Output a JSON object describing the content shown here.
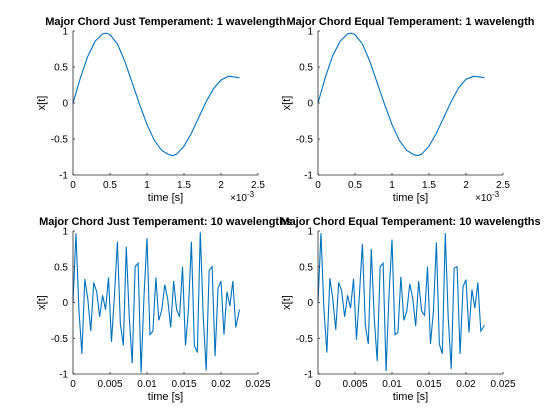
{
  "chart_data": [
    {
      "type": "line",
      "title": "Major Chord Just Temperament: 1 wavelength",
      "xlabel": "time [s]",
      "ylabel": "x[t]",
      "xlim": [
        0,
        0.0025
      ],
      "ylim": [
        -1,
        1
      ],
      "xtick_labels": [
        "0",
        "0.5",
        "1",
        "1.5",
        "2",
        "2.5"
      ],
      "xtick_values": [
        0,
        0.0005,
        0.001,
        0.0015,
        0.002,
        0.0025
      ],
      "x_multiplier": "×10",
      "x_multiplier_exp": "-3",
      "ytick_labels": [
        "-1",
        "-0.5",
        "0",
        "0.5",
        "1"
      ],
      "ytick_values": [
        -1,
        -0.5,
        0,
        0.5,
        1
      ],
      "line_color": "#0072BD",
      "x": [
        0,
        0.0001,
        0.0002,
        0.0003,
        0.0004,
        0.00045,
        0.0005,
        0.0006,
        0.0007,
        0.0008,
        0.0009,
        0.001,
        0.0011,
        0.0012,
        0.0013,
        0.00135,
        0.0014,
        0.0015,
        0.0016,
        0.0017,
        0.0018,
        0.0019,
        0.002,
        0.0021,
        0.0022,
        0.00225
      ],
      "y": [
        0,
        0.35,
        0.65,
        0.86,
        0.96,
        0.97,
        0.95,
        0.82,
        0.58,
        0.28,
        -0.02,
        -0.3,
        -0.52,
        -0.66,
        -0.72,
        -0.73,
        -0.71,
        -0.6,
        -0.42,
        -0.2,
        0.02,
        0.2,
        0.32,
        0.37,
        0.36,
        0.35
      ]
    },
    {
      "type": "line",
      "title": "Major Chord Equal Temperament: 1 wavelength",
      "xlabel": "time [s]",
      "ylabel": "x[t]",
      "xlim": [
        0,
        0.0025
      ],
      "ylim": [
        -1,
        1
      ],
      "xtick_labels": [
        "0",
        "0.5",
        "1",
        "1.5",
        "2",
        "2.5"
      ],
      "xtick_values": [
        0,
        0.0005,
        0.001,
        0.0015,
        0.002,
        0.0025
      ],
      "x_multiplier": "×10",
      "x_multiplier_exp": "-3",
      "ytick_labels": [
        "-1",
        "-0.5",
        "0",
        "0.5",
        "1"
      ],
      "ytick_values": [
        -1,
        -0.5,
        0,
        0.5,
        1
      ],
      "line_color": "#0072BD",
      "x": [
        0,
        0.0001,
        0.0002,
        0.0003,
        0.0004,
        0.00045,
        0.0005,
        0.0006,
        0.0007,
        0.0008,
        0.0009,
        0.001,
        0.0011,
        0.0012,
        0.0013,
        0.00135,
        0.0014,
        0.0015,
        0.0016,
        0.0017,
        0.0018,
        0.0019,
        0.002,
        0.0021,
        0.0022,
        0.00225
      ],
      "y": [
        0,
        0.36,
        0.66,
        0.86,
        0.96,
        0.97,
        0.95,
        0.82,
        0.58,
        0.28,
        -0.02,
        -0.3,
        -0.52,
        -0.66,
        -0.72,
        -0.73,
        -0.71,
        -0.6,
        -0.42,
        -0.2,
        0.02,
        0.21,
        0.33,
        0.37,
        0.36,
        0.35
      ]
    },
    {
      "type": "line",
      "title": "Major Chord Just Temperament: 10 wavelengths",
      "xlabel": "time [s]",
      "ylabel": "x[t]",
      "xlim": [
        0,
        0.025
      ],
      "ylim": [
        -1,
        1
      ],
      "xtick_labels": [
        "0",
        "0.005",
        "0.01",
        "0.015",
        "0.02",
        "0.025"
      ],
      "xtick_values": [
        0,
        0.005,
        0.01,
        0.015,
        0.02,
        0.025
      ],
      "x_multiplier": "",
      "x_multiplier_exp": "",
      "ytick_labels": [
        "-1",
        "-0.5",
        "0",
        "0.5",
        "1"
      ],
      "ytick_values": [
        -1,
        -0.5,
        0,
        0.5,
        1
      ],
      "line_color": "#0072BD",
      "x": [
        0,
        0.0004,
        0.0008,
        0.0012,
        0.0016,
        0.002,
        0.0024,
        0.0028,
        0.0032,
        0.0036,
        0.004,
        0.0044,
        0.0048,
        0.0052,
        0.0056,
        0.006,
        0.0064,
        0.0068,
        0.0072,
        0.0076,
        0.008,
        0.0084,
        0.0088,
        0.0092,
        0.0096,
        0.01,
        0.0104,
        0.0108,
        0.0112,
        0.0116,
        0.012,
        0.0124,
        0.0128,
        0.0132,
        0.0136,
        0.014,
        0.0144,
        0.0148,
        0.0152,
        0.0156,
        0.016,
        0.0164,
        0.0168,
        0.0172,
        0.0176,
        0.018,
        0.0184,
        0.0188,
        0.0192,
        0.0196,
        0.02,
        0.0204,
        0.0208,
        0.0212,
        0.0216,
        0.022,
        0.0225
      ],
      "y": [
        0,
        0.97,
        -0.1,
        -0.72,
        0.33,
        0.05,
        -0.4,
        0.28,
        0.15,
        -0.2,
        0.1,
        -0.1,
        0.35,
        -0.55,
        0.1,
        0.85,
        -0.3,
        -0.6,
        0.78,
        -0.2,
        -0.85,
        0.5,
        0.55,
        -0.98,
        0.1,
        0.9,
        -0.45,
        -0.4,
        0.35,
        -0.25,
        -0.1,
        0.25,
        0.05,
        -0.35,
        0.3,
        -0.1,
        -0.2,
        0.5,
        -0.6,
        -0.1,
        0.85,
        -0.6,
        -0.7,
        0.98,
        -0.2,
        -0.95,
        0.45,
        0.5,
        -0.75,
        0.2,
        0.3,
        -0.45,
        0.15,
        -0.05,
        0.3,
        -0.35,
        -0.1
      ]
    },
    {
      "type": "line",
      "title": "Major Chord Equal Temperament: 10 wavelengths",
      "xlabel": "time [s]",
      "ylabel": "x[t]",
      "xlim": [
        0,
        0.025
      ],
      "ylim": [
        -1,
        1
      ],
      "xtick_labels": [
        "0",
        "0.005",
        "0.01",
        "0.015",
        "0.02",
        "0.025"
      ],
      "xtick_values": [
        0,
        0.005,
        0.01,
        0.015,
        0.02,
        0.025
      ],
      "x_multiplier": "",
      "x_multiplier_exp": "",
      "ytick_labels": [
        "-1",
        "-0.5",
        "0",
        "0.5",
        "1"
      ],
      "ytick_values": [
        -1,
        -0.5,
        0,
        0.5,
        1
      ],
      "line_color": "#0072BD",
      "x": [
        0,
        0.0004,
        0.0008,
        0.0012,
        0.0016,
        0.002,
        0.0024,
        0.0028,
        0.0032,
        0.0036,
        0.004,
        0.0044,
        0.0048,
        0.0052,
        0.0056,
        0.006,
        0.0064,
        0.0068,
        0.0072,
        0.0076,
        0.008,
        0.0084,
        0.0088,
        0.0092,
        0.0096,
        0.01,
        0.0104,
        0.0108,
        0.0112,
        0.0116,
        0.012,
        0.0124,
        0.0128,
        0.0132,
        0.0136,
        0.014,
        0.0144,
        0.0148,
        0.0152,
        0.0156,
        0.016,
        0.0164,
        0.0168,
        0.0172,
        0.0176,
        0.018,
        0.0184,
        0.0188,
        0.0192,
        0.0196,
        0.02,
        0.0204,
        0.0208,
        0.0212,
        0.0216,
        0.022,
        0.0225
      ],
      "y": [
        0,
        0.97,
        -0.1,
        -0.7,
        0.34,
        0.05,
        -0.38,
        0.28,
        0.16,
        -0.2,
        0.1,
        -0.08,
        0.33,
        -0.52,
        0.12,
        0.82,
        -0.32,
        -0.58,
        0.75,
        -0.22,
        -0.82,
        0.5,
        0.55,
        -0.96,
        0.12,
        0.88,
        -0.45,
        -0.42,
        0.36,
        -0.25,
        -0.12,
        0.26,
        0.06,
        -0.33,
        0.3,
        -0.12,
        -0.18,
        0.5,
        -0.58,
        -0.12,
        0.84,
        -0.58,
        -0.72,
        0.97,
        -0.22,
        -0.93,
        0.48,
        0.5,
        -0.72,
        0.22,
        0.32,
        -0.42,
        0.18,
        -0.08,
        0.28,
        -0.4,
        -0.32
      ]
    }
  ]
}
